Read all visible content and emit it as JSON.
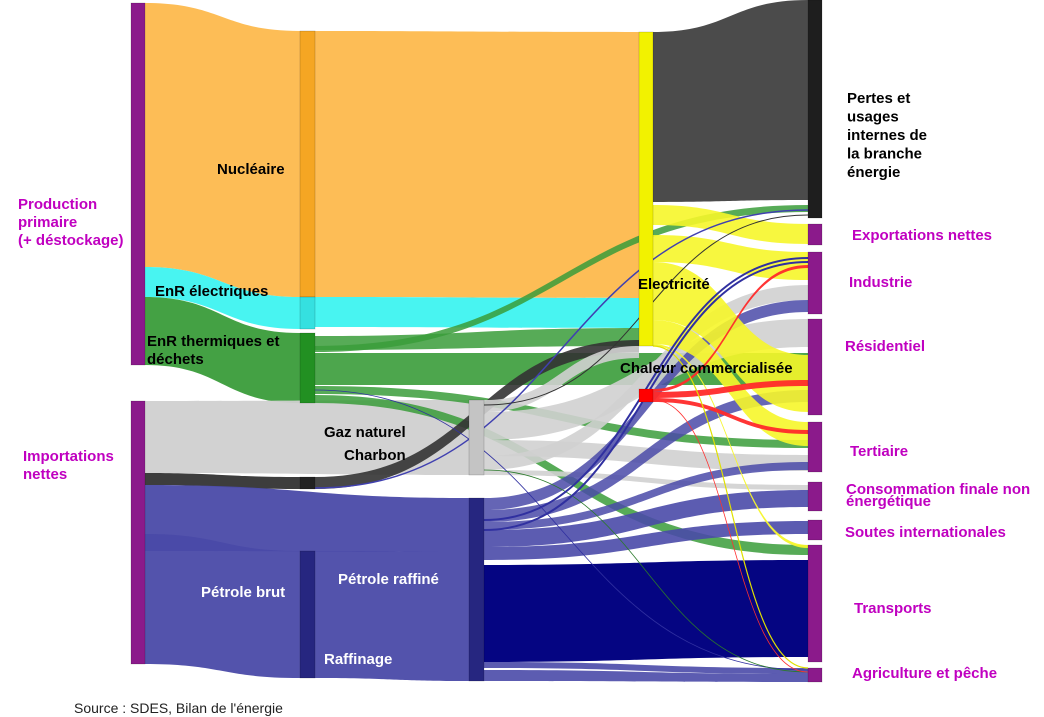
{
  "chart_data": {
    "type": "sankey",
    "source_note": "Source : SDES, Bilan de l'énergie",
    "colors": {
      "node_magenta": "#8b1a8b",
      "nucleaire": "#fdb94d",
      "enr_elec": "#3ef3f0",
      "enr_therm": "#3a9c3a",
      "gaz": "#d0d0d0",
      "charbon": "#333333",
      "petrole": "#4a4aa8",
      "petrole_raffine": "#000080",
      "electricite": "#f6f62a",
      "pertes": "#454545",
      "chaleur": "#ff2a2a"
    },
    "nodes": [
      {
        "id": "prod",
        "label": "Production\nprimaire\n(+ déstockage)",
        "label_color": "magenta"
      },
      {
        "id": "imp",
        "label": "Importations\nnettes",
        "label_color": "magenta"
      },
      {
        "id": "nuc",
        "label": "Nucléaire"
      },
      {
        "id": "enre",
        "label": "EnR électriques"
      },
      {
        "id": "enrt",
        "label": "EnR thermiques et\ndéchets"
      },
      {
        "id": "gaz",
        "label": "Gaz naturel"
      },
      {
        "id": "charb",
        "label": "Charbon"
      },
      {
        "id": "pbrut",
        "label": "Pétrole brut"
      },
      {
        "id": "raff",
        "label": "Raffinage"
      },
      {
        "id": "praff",
        "label": "Pétrole raffiné"
      },
      {
        "id": "elec",
        "label": "Electricité"
      },
      {
        "id": "chal",
        "label": "Chaleur commercialisée"
      },
      {
        "id": "pertes",
        "label": "Pertes et\nusages\ninternes de\nla branche\nénergie"
      },
      {
        "id": "exp",
        "label": "Exportations nettes",
        "label_color": "magenta"
      },
      {
        "id": "ind",
        "label": "Industrie",
        "label_color": "magenta"
      },
      {
        "id": "res",
        "label": "Résidentiel",
        "label_color": "magenta"
      },
      {
        "id": "ter",
        "label": "Tertiaire",
        "label_color": "magenta"
      },
      {
        "id": "cfne",
        "label": "Consommation finale non\nénergétique",
        "label_color": "magenta"
      },
      {
        "id": "soutes",
        "label": "Soutes internationales",
        "label_color": "magenta"
      },
      {
        "id": "transp",
        "label": "Transports",
        "label_color": "magenta"
      },
      {
        "id": "agri",
        "label": "Agriculture et pêche",
        "label_color": "magenta"
      }
    ]
  }
}
